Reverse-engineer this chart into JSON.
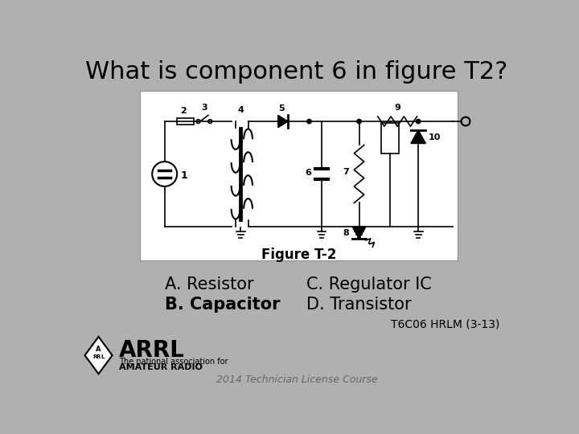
{
  "title": "What is component 6 in figure T2?",
  "title_fontsize": 22,
  "bg_color": "#b0b0b0",
  "box_bg": "#ffffff",
  "answer_A": "A. Resistor",
  "answer_B": "B. Capacitor",
  "answer_C": "C. Regulator IC",
  "answer_D": "D. Transistor",
  "figure_label": "Figure T-2",
  "ref_text": "T6C06 HRLM (3-13)",
  "footer_text": "2014 Technician License Course"
}
